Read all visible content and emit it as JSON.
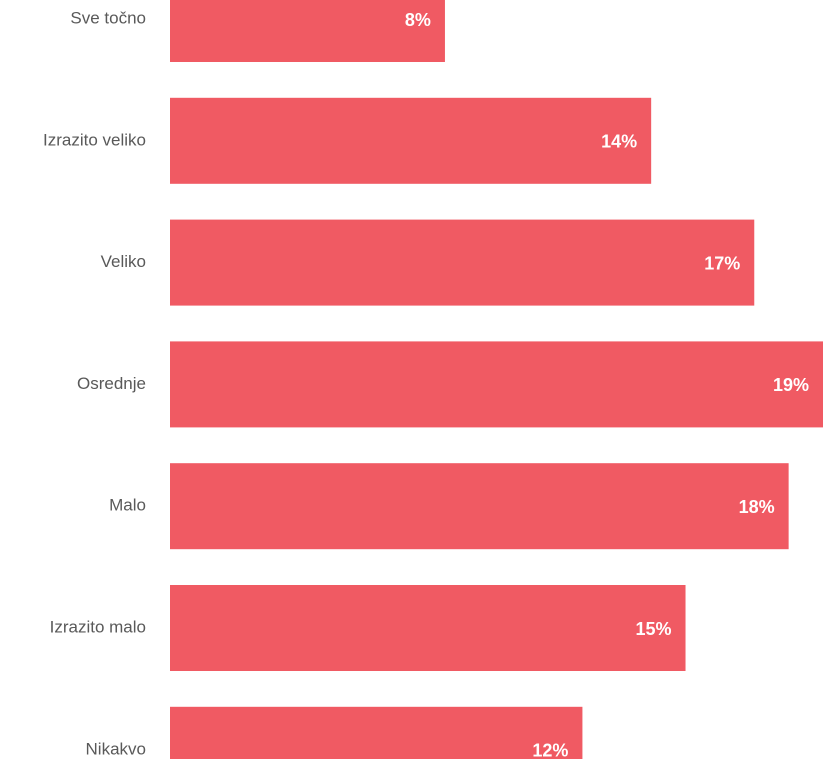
{
  "chart_data": {
    "type": "bar",
    "orientation": "horizontal",
    "categories": [
      "Sve točno",
      "Izrazito veliko",
      "Veliko",
      "Osrednje",
      "Malo",
      "Izrazito malo",
      "Nikakvo"
    ],
    "values": [
      8,
      14,
      17,
      19,
      18,
      15,
      12
    ],
    "value_labels": [
      "8%",
      "14%",
      "17%",
      "19%",
      "18%",
      "15%",
      "12%"
    ],
    "color": "#f05a63",
    "xlim": [
      0,
      19
    ]
  }
}
